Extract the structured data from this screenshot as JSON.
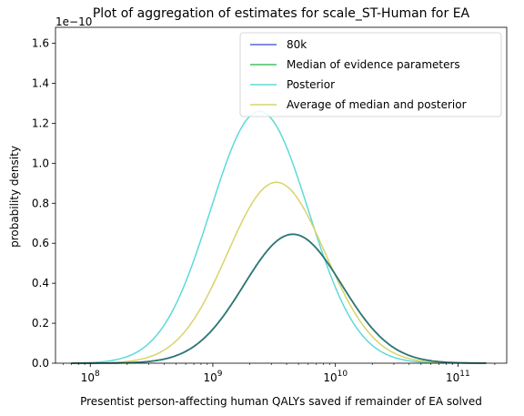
{
  "chart_data": {
    "type": "line",
    "title": "Plot of aggregation of estimates for scale_ST-Human for EA",
    "xlabel": "Presentist person-affecting human QALYs saved if remainder of EA solved",
    "ylabel": "probability density",
    "y_offset_label": "1e−10",
    "x_scale": "log",
    "xlim": [
      52000000,
      250000000000
    ],
    "ylim": [
      0,
      1.68
    ],
    "x_ticks": [
      {
        "value": 100000000,
        "base": "10",
        "exp": "8"
      },
      {
        "value": 1000000000,
        "base": "10",
        "exp": "9"
      },
      {
        "value": 10000000000,
        "base": "10",
        "exp": "10"
      },
      {
        "value": 100000000000,
        "base": "10",
        "exp": "11"
      }
    ],
    "y_ticks": [
      "0.0",
      "0.2",
      "0.4",
      "0.6",
      "0.8",
      "1.0",
      "1.2",
      "1.4",
      "1.6"
    ],
    "legend_position": "top-right",
    "grid": false,
    "series": [
      {
        "name": "80k",
        "color": "#5a63d8",
        "peak_x": 4500000000,
        "peak_y": 0.645,
        "x_min": 70000000,
        "x_max": 170000000000
      },
      {
        "name": "Median of evidence parameters",
        "color": "#47c25b",
        "peak_x": 4500000000,
        "peak_y": 0.645,
        "x_min": 70000000,
        "x_max": 170000000000
      },
      {
        "name": "Posterior",
        "color": "#5fd9d9",
        "peak_x": 2400000000,
        "peak_y": 1.26,
        "x_min": 70000000,
        "x_max": 170000000000
      },
      {
        "name": "Average of median and posterior",
        "color": "#d9d36a",
        "peak_x": 3300000000,
        "peak_y": 0.905,
        "x_min": 70000000,
        "x_max": 170000000000
      }
    ],
    "overlap_color": "#2e7773"
  }
}
